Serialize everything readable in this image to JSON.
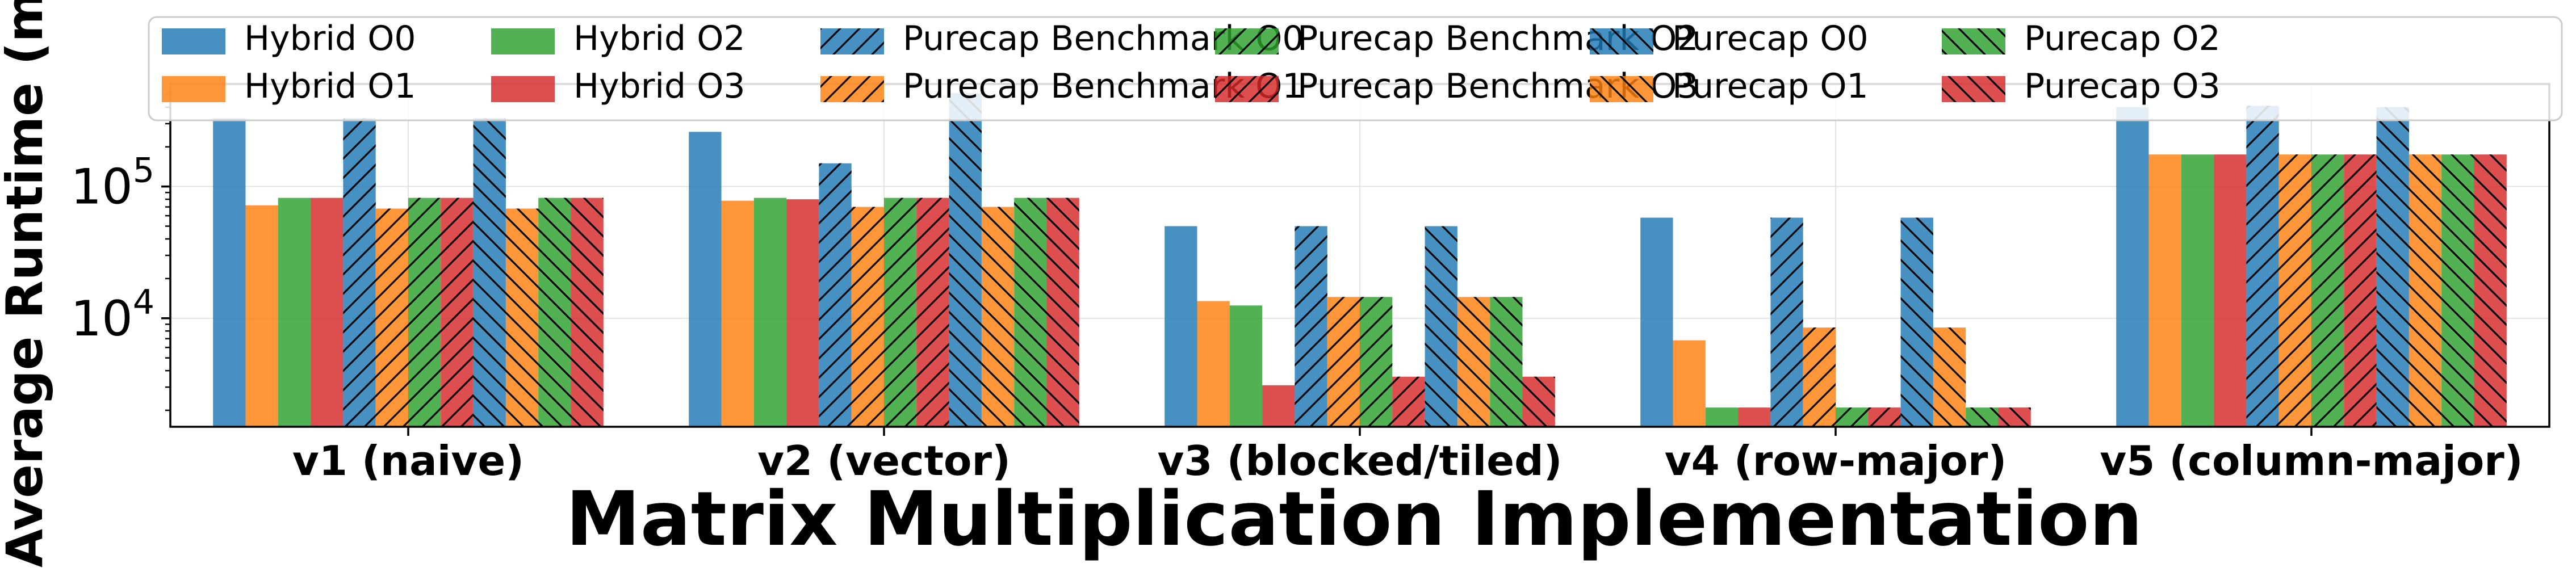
{
  "chart_data": {
    "type": "bar",
    "xlabel": "Matrix Multiplication Implementation",
    "ylabel": "Average Runtime (ms",
    "yscale": "log",
    "ylim": [
      1500,
      600000
    ],
    "yticks": [
      {
        "value": 10000,
        "base": "10",
        "exp": "4"
      },
      {
        "value": 100000,
        "base": "10",
        "exp": "5"
      }
    ],
    "grid": true,
    "legend": {
      "placement": "top",
      "columns": 6
    },
    "categories": [
      "v1 (naive)",
      "v2 (vector)",
      "v3 (blocked/tiled)",
      "v4 (row-major)",
      "v5 (column-major)"
    ],
    "series": [
      {
        "name": "Hybrid O0",
        "color": "#1f77b4",
        "hatch": "none",
        "values": [
          330000,
          260000,
          50000,
          58000,
          400000
        ]
      },
      {
        "name": "Hybrid O1",
        "color": "#ff7f0e",
        "hatch": "none",
        "values": [
          72000,
          78000,
          13500,
          6800,
          175000
        ]
      },
      {
        "name": "Hybrid O2",
        "color": "#2ca02c",
        "hatch": "none",
        "values": [
          82000,
          82000,
          12500,
          2100,
          175000
        ]
      },
      {
        "name": "Hybrid O3",
        "color": "#d62728",
        "hatch": "none",
        "values": [
          82000,
          80000,
          3100,
          2100,
          175000
        ]
      },
      {
        "name": "Purecap Benchmark O0",
        "color": "#1f77b4",
        "hatch": "slash",
        "values": [
          330000,
          150000,
          50000,
          58000,
          410000
        ]
      },
      {
        "name": "Purecap Benchmark O1",
        "color": "#ff7f0e",
        "hatch": "slash",
        "values": [
          68000,
          70000,
          14500,
          8500,
          175000
        ]
      },
      {
        "name": "Purecap Benchmark O2",
        "color": "#2ca02c",
        "hatch": "slash",
        "values": [
          82000,
          82000,
          14500,
          2100,
          175000
        ]
      },
      {
        "name": "Purecap Benchmark O3",
        "color": "#d62728",
        "hatch": "slash",
        "values": [
          82000,
          82000,
          3600,
          2100,
          175000
        ]
      },
      {
        "name": "Purecap O0",
        "color": "#1f77b4",
        "hatch": "backslash",
        "values": [
          330000,
          510000,
          50000,
          58000,
          400000
        ]
      },
      {
        "name": "Purecap O1",
        "color": "#ff7f0e",
        "hatch": "backslash",
        "values": [
          68000,
          70000,
          14500,
          8500,
          175000
        ]
      },
      {
        "name": "Purecap O2",
        "color": "#2ca02c",
        "hatch": "backslash",
        "values": [
          82000,
          82000,
          14500,
          2100,
          175000
        ]
      },
      {
        "name": "Purecap O3",
        "color": "#d62728",
        "hatch": "backslash",
        "values": [
          82000,
          82000,
          3600,
          2100,
          175000
        ]
      }
    ]
  }
}
